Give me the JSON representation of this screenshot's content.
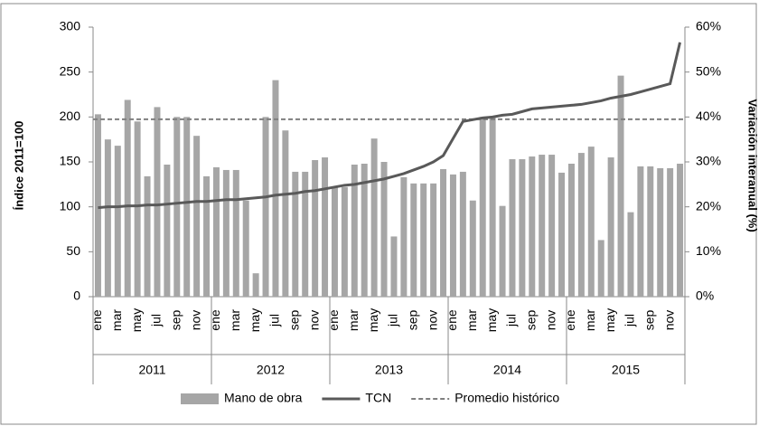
{
  "chart_data": {
    "type": "bar-line",
    "ylabel": "Índice 2011=100",
    "y2label": "Variación interanual (%)",
    "categories": [
      "ene",
      null,
      "mar",
      null,
      "may",
      null,
      "jul",
      null,
      "sep",
      null,
      "nov",
      null,
      "ene",
      null,
      "mar",
      null,
      "may",
      null,
      "jul",
      null,
      "sep",
      null,
      "nov",
      null,
      "ene",
      null,
      "mar",
      null,
      "may",
      null,
      "jul",
      null,
      "sep",
      null,
      "nov",
      null,
      "ene",
      null,
      "mar",
      null,
      "may",
      null,
      "jul",
      null,
      "sep",
      null,
      "nov",
      null,
      "ene",
      null,
      "mar",
      null,
      "may",
      null,
      "jul",
      null,
      "sep",
      null,
      "nov",
      null
    ],
    "years": [
      "2011",
      "2012",
      "2013",
      "2014",
      "2015"
    ],
    "series": [
      {
        "name": "Mano de obra",
        "type": "bar",
        "axis": "y2",
        "color": "#a6a6a6",
        "values": [
          40.6,
          35,
          33.6,
          43.8,
          39,
          26.8,
          42.2,
          29.4,
          40,
          40,
          35.8,
          26.8,
          28.8,
          28.2,
          28.2,
          21.4,
          5.2,
          40,
          48.2,
          37,
          27.8,
          27.8,
          30.4,
          31,
          24.4,
          24.4,
          29.4,
          29.6,
          35.2,
          30,
          13.4,
          26.6,
          25.2,
          25.2,
          25.2,
          28.4,
          27.2,
          27.8,
          21.4,
          40,
          40,
          20.2,
          30.6,
          30.6,
          31.2,
          31.6,
          31.6,
          27.6,
          29.6,
          32,
          33.4,
          12.6,
          31,
          49.2,
          18.8,
          29,
          29,
          28.6,
          28.6,
          29.6
        ]
      },
      {
        "name": "TCN",
        "type": "line",
        "color": "#595959",
        "values": [
          99,
          100,
          100,
          101,
          101,
          102,
          102,
          103,
          104,
          105,
          106,
          106,
          107,
          108,
          108,
          109,
          110,
          111,
          113,
          114,
          115,
          117,
          118,
          120,
          122,
          124,
          125,
          127,
          129,
          131,
          134,
          137,
          141,
          145,
          150,
          157,
          176,
          195,
          197,
          199,
          200,
          202,
          203,
          206,
          209,
          210,
          211,
          212,
          213,
          214,
          216,
          218,
          221,
          223,
          225,
          228,
          231,
          234,
          237,
          283
        ]
      }
    ],
    "reference_lines": [
      {
        "name": "Promedio histórico",
        "value": 39.5,
        "axis": "y2",
        "color": "#7f7f7f"
      }
    ],
    "ylim": [
      0,
      300
    ],
    "yticks": [
      0,
      50,
      100,
      150,
      200,
      250,
      300
    ],
    "y2lim": [
      0,
      60
    ],
    "y2ticks": [
      {
        "value": 0,
        "label": "0%"
      },
      {
        "value": 10,
        "label": "10%"
      },
      {
        "value": 20,
        "label": "20%"
      },
      {
        "value": 30,
        "label": "30%"
      },
      {
        "value": 40,
        "label": "40%"
      },
      {
        "value": 50,
        "label": "50%"
      },
      {
        "value": 60,
        "label": "60%"
      }
    ],
    "grid": false
  }
}
